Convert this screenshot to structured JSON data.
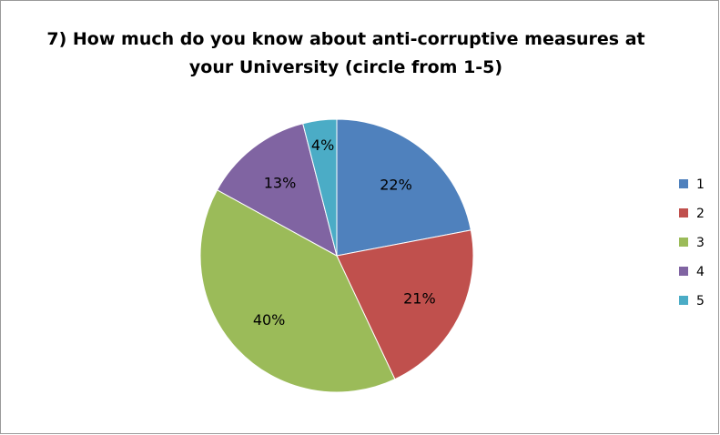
{
  "chart_data": {
    "type": "pie",
    "title_lines": [
      "7) How much do you know about anti-corruptive measures at",
      "your University (circle from 1-5)"
    ],
    "categories": [
      "1",
      "2",
      "3",
      "4",
      "5"
    ],
    "values": [
      22,
      21,
      40,
      13,
      4
    ],
    "labels": [
      "22%",
      "21%",
      "40%",
      "13%",
      "4%"
    ],
    "colors": [
      "#4f81bd",
      "#c0504d",
      "#9bbb59",
      "#8064a2",
      "#4bacc6"
    ],
    "start_angle_deg": 0,
    "direction": "clockwise",
    "legend_position": "right"
  }
}
